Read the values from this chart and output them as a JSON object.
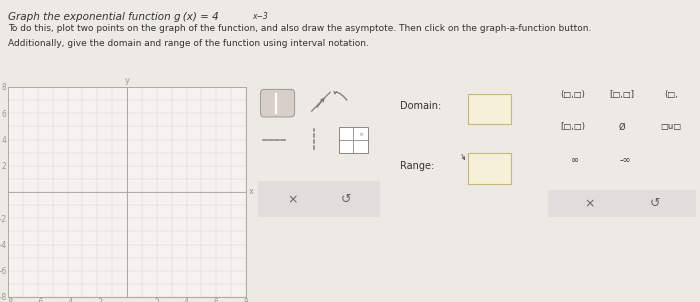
{
  "bg_color": "#ede9e4",
  "text_color": "#333333",
  "light_text": "#999999",
  "grid_color": "#d0ccc8",
  "axis_color": "#aaaaaa",
  "graph_bg": "#f5f3f0",
  "graph_border": "#b0a8a0",
  "panel_bg": "#ffffff",
  "panel_border": "#cccccc",
  "toolbar_bg": "#f8f8f6",
  "toolbar_border": "#cccccc",
  "gray_bar_bg": "#e0dedd",
  "input_box_bg": "#f5f0d8",
  "input_box_border": "#c8b878",
  "font_size_title": 7.5,
  "font_size_body": 7.0,
  "font_size_tick": 5.5,
  "font_size_icon": 6.0,
  "domain_label": "Domain:",
  "range_label": "Range:",
  "line1a": "Graph the exponential function g (x) = 4",
  "line1_exp": "x−3",
  "line2": "To do this, plot two points on the graph of the function, and also draw the asymptote. Then click on the graph-a-function button.",
  "line3": "Additionally, give the domain and range of the function using interval notation.",
  "sym_r1": [
    "(□,□)",
    "[□,□]",
    "(□,"
  ],
  "sym_r2": [
    "[□,□)",
    "Ø",
    "□u□"
  ],
  "sym_r3": [
    "∞",
    "-∞"
  ]
}
